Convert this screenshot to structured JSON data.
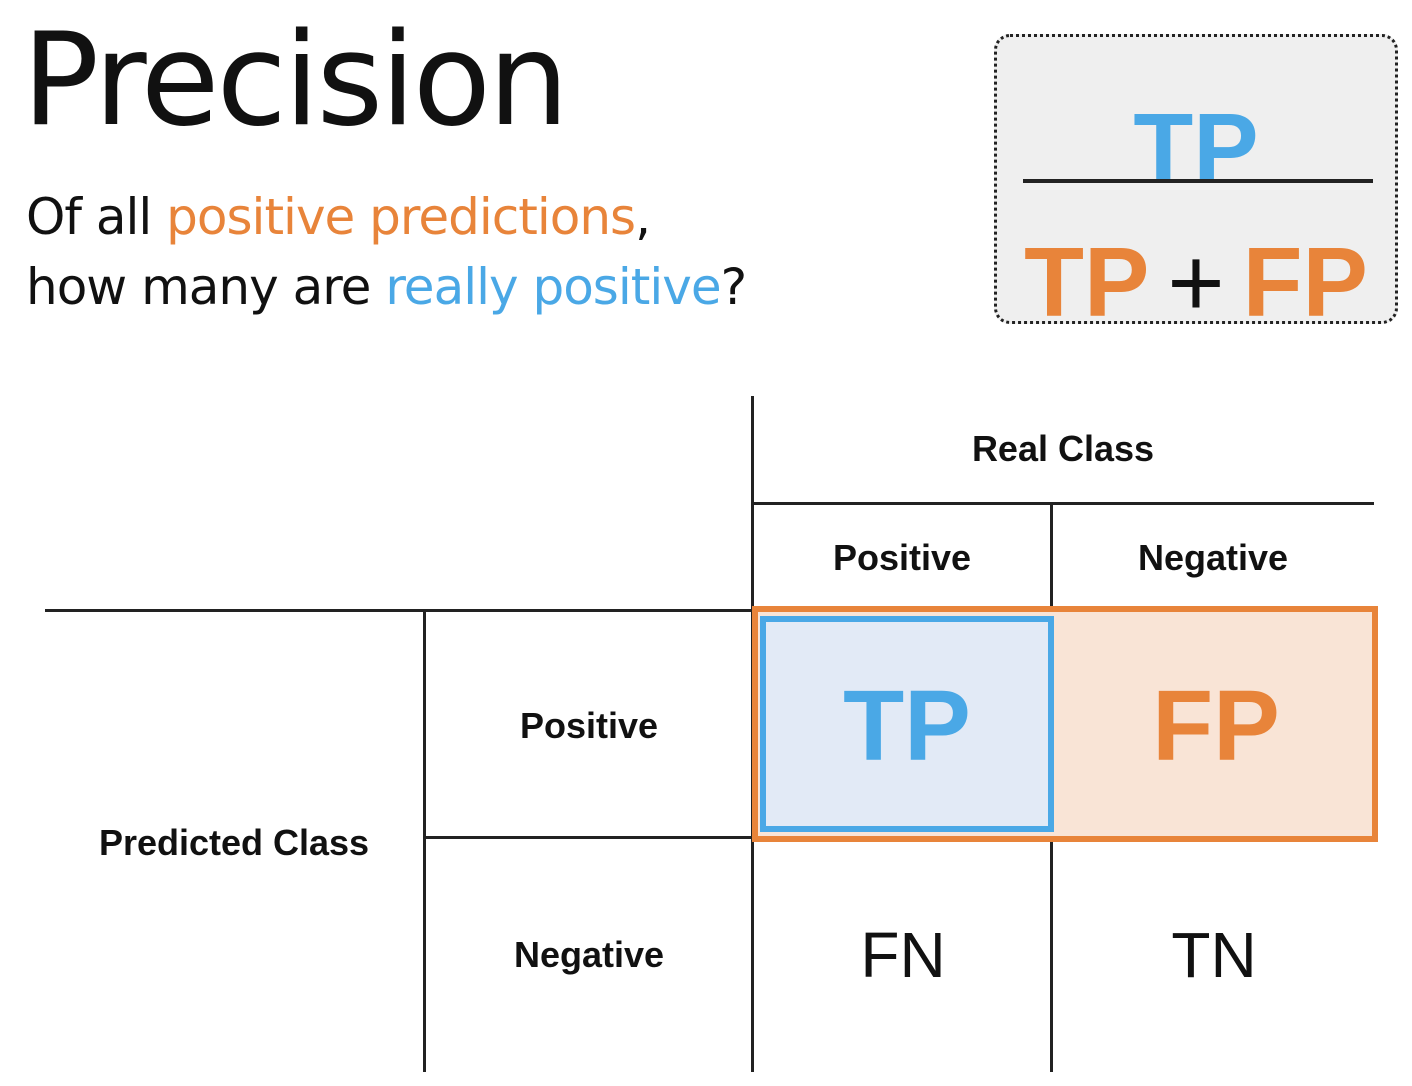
{
  "title": "Precision",
  "question": {
    "line1_prefix": "Of all ",
    "line1_highlight": "positive predictions",
    "line1_suffix": ",",
    "line2_prefix": "how many are ",
    "line2_highlight": "really positive",
    "line2_suffix": "?"
  },
  "formula": {
    "numerator": "TP",
    "denominator_left": "TP",
    "denominator_op": "+",
    "denominator_right": "FP"
  },
  "matrix": {
    "real_class_label": "Real Class",
    "predicted_class_label": "Predicted Class",
    "col_positive": "Positive",
    "col_negative": "Negative",
    "row_positive": "Positive",
    "row_negative": "Negative",
    "cells": {
      "tp": "TP",
      "fp": "FP",
      "fn": "FN",
      "tn": "TN"
    }
  },
  "colors": {
    "orange": "#e8843a",
    "blue": "#4aa8e6",
    "tp_fill": "#e2eaf6",
    "fp_fill": "#f9e4d6",
    "formula_box_fill": "#efefef"
  }
}
